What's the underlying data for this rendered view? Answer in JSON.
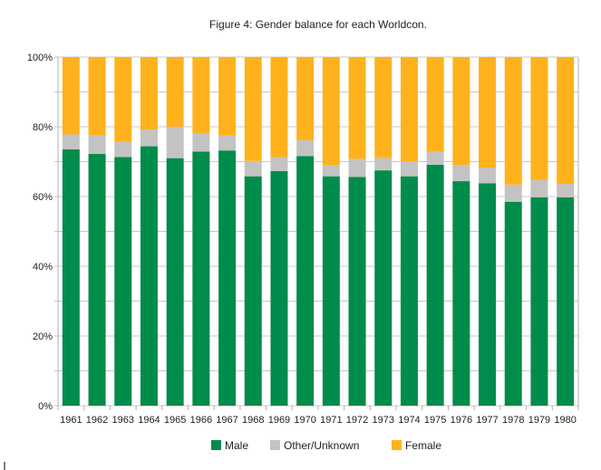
{
  "chart_data": {
    "type": "bar",
    "stacked": true,
    "percent": true,
    "title": "Figure 4: Gender balance for each Worldcon.",
    "xlabel": "",
    "ylabel": "",
    "ylim": [
      0,
      100
    ],
    "y_ticks": [
      "0%",
      "20%",
      "40%",
      "60%",
      "80%",
      "100%"
    ],
    "y_tick_values": [
      0,
      20,
      40,
      60,
      80,
      100
    ],
    "grid": true,
    "legend_position": "bottom",
    "categories": [
      "1961",
      "1962",
      "1963",
      "1964",
      "1965",
      "1966",
      "1967",
      "1968",
      "1969",
      "1970",
      "1971",
      "1972",
      "1973",
      "1974",
      "1975",
      "1976",
      "1977",
      "1978",
      "1979",
      "1980"
    ],
    "series": [
      {
        "name": "Male",
        "color": "#008c4a",
        "values": [
          73.5,
          72.2,
          71.3,
          74.4,
          71.0,
          72.9,
          73.2,
          65.8,
          67.3,
          71.6,
          65.8,
          65.6,
          67.5,
          65.8,
          69.1,
          64.4,
          63.8,
          58.5,
          59.8,
          59.8
        ]
      },
      {
        "name": "Other/Unknown",
        "color": "#c3c3c3",
        "values": [
          4.3,
          5.3,
          4.4,
          4.8,
          9.0,
          5.3,
          4.3,
          4.4,
          4.0,
          4.6,
          3.1,
          5.2,
          3.5,
          4.3,
          3.7,
          4.6,
          4.5,
          4.9,
          5.0,
          3.8
        ]
      },
      {
        "name": "Female",
        "color": "#ffb21c",
        "values": [
          22.2,
          22.5,
          24.3,
          20.8,
          20.0,
          21.8,
          22.5,
          29.8,
          28.7,
          23.8,
          31.1,
          29.2,
          29.0,
          29.9,
          27.2,
          31.0,
          31.7,
          36.6,
          35.2,
          36.4
        ]
      }
    ]
  }
}
